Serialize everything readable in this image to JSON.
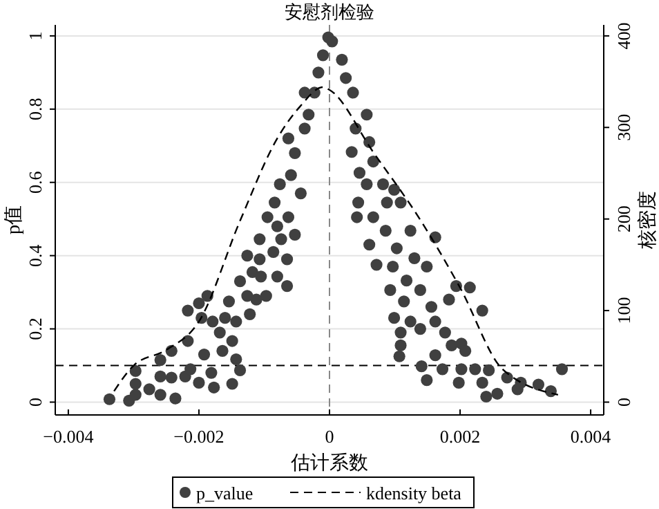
{
  "chart_data": {
    "type": "scatter",
    "title": "安慰剂检验",
    "xlabel": "估计系数",
    "ylabel": "p值",
    "y2label": "核密度",
    "xlim": [
      -0.0042,
      0.0042
    ],
    "xticks": [
      {
        "value": -0.004,
        "label": "−0.004"
      },
      {
        "value": -0.002,
        "label": "−0.002"
      },
      0,
      0.002,
      0.004
    ],
    "ylim": [
      -0.035,
      1.03
    ],
    "yticks": [
      0,
      0.2,
      0.4,
      0.6,
      0.8,
      1
    ],
    "y2lim": [
      -14,
      412
    ],
    "y2ticks": [
      0,
      100,
      200,
      300,
      400
    ],
    "grid": "y",
    "legend": "bottom",
    "ref_lines": [
      {
        "axis": "y",
        "value": 0.1,
        "color": "#000000",
        "line_style": "dashed"
      },
      {
        "axis": "x",
        "value": 0,
        "color": "#888888",
        "line_style": "dashed"
      }
    ],
    "series": [
      {
        "name": "p_value",
        "color": "#404040",
        "marker": "circle",
        "x": [
          -0.00337,
          -0.00307,
          -0.00297,
          -0.00297,
          -0.00297,
          -0.00276,
          -0.00259,
          -0.00259,
          -0.00259,
          -0.00242,
          -0.00236,
          -0.00242,
          -0.00221,
          -0.00217,
          -0.00217,
          -0.00213,
          -0.002,
          -0.002,
          -0.00187,
          -0.00196,
          -0.00192,
          -0.00181,
          -0.00179,
          -0.00177,
          -0.00168,
          -0.00164,
          -0.0016,
          -0.00149,
          -0.00154,
          -0.00149,
          -0.00143,
          -0.00137,
          -0.00143,
          -0.00137,
          -0.00126,
          -0.00122,
          -0.00112,
          -0.00118,
          -0.00126,
          -0.00107,
          -0.00105,
          -0.00097,
          -0.00095,
          -0.00086,
          -0.00084,
          -0.0008,
          -0.00074,
          -0.00076,
          -0.00065,
          -0.00063,
          -0.00059,
          -0.00053,
          -0.00053,
          -0.00044,
          -0.00038,
          -0.00032,
          -0.00023,
          -0.00017,
          -0.0001,
          -2e-05,
          -0.00107,
          -0.00063,
          -0.00038,
          -0.00065,
          -0.0008,
          4e-05,
          0.00019,
          0.00025,
          0.00036,
          0.00057,
          0.0004,
          0.00061,
          0.00034,
          0.00046,
          0.00067,
          0.00057,
          0.00082,
          0.00044,
          0.00088,
          0.00067,
          0.00099,
          0.00042,
          0.00061,
          0.00086,
          0.00109,
          0.00124,
          0.00162,
          0.00103,
          0.00072,
          0.00097,
          0.0013,
          0.00118,
          0.00149,
          0.00093,
          0.00114,
          0.00139,
          0.00156,
          0.00099,
          0.00124,
          0.00139,
          0.00162,
          0.00177,
          0.00109,
          0.00183,
          0.00194,
          0.00215,
          0.00234,
          0.00109,
          0.00107,
          0.00141,
          0.00149,
          0.00162,
          0.00173,
          0.00187,
          0.00202,
          0.00208,
          0.00202,
          0.00198,
          0.00223,
          0.00234,
          0.00244,
          0.0024,
          0.00257,
          0.00272,
          0.00288,
          0.00293,
          0.0032,
          0.00339,
          0.00356
        ],
        "values": [
          0.008,
          0.004,
          0.02,
          0.05,
          0.085,
          0.035,
          0.02,
          0.07,
          0.115,
          0.067,
          0.01,
          0.14,
          0.07,
          0.25,
          0.167,
          0.09,
          0.27,
          0.053,
          0.29,
          0.23,
          0.13,
          0.08,
          0.22,
          0.04,
          0.19,
          0.14,
          0.23,
          0.05,
          0.275,
          0.167,
          0.117,
          0.087,
          0.22,
          0.33,
          0.29,
          0.24,
          0.28,
          0.355,
          0.4,
          0.445,
          0.343,
          0.29,
          0.505,
          0.41,
          0.545,
          0.343,
          0.445,
          0.595,
          0.317,
          0.505,
          0.62,
          0.457,
          0.68,
          0.57,
          0.747,
          0.785,
          0.845,
          0.9,
          0.947,
          0.996,
          0.39,
          0.72,
          0.845,
          0.39,
          0.48,
          0.985,
          0.935,
          0.885,
          0.845,
          0.785,
          0.747,
          0.71,
          0.683,
          0.626,
          0.657,
          0.595,
          0.595,
          0.545,
          0.545,
          0.505,
          0.58,
          0.505,
          0.43,
          0.468,
          0.545,
          0.468,
          0.45,
          0.42,
          0.375,
          0.37,
          0.393,
          0.332,
          0.37,
          0.306,
          0.275,
          0.306,
          0.26,
          0.23,
          0.22,
          0.2,
          0.22,
          0.19,
          0.19,
          0.28,
          0.317,
          0.313,
          0.25,
          0.155,
          0.125,
          0.098,
          0.06,
          0.128,
          0.09,
          0.155,
          0.16,
          0.14,
          0.09,
          0.053,
          0.09,
          0.053,
          0.087,
          0.015,
          0.023,
          0.067,
          0.035,
          0.053,
          0.048,
          0.03,
          0.09
        ]
      },
      {
        "name": "kdensity beta",
        "type": "line",
        "axis": "y2",
        "color": "#000000",
        "line_style": "dashed",
        "x": [
          -0.0033,
          -0.003,
          -0.0025,
          -0.002,
          -0.00137,
          -0.0008,
          -0.00045,
          -0.0001,
          0,
          0.00067,
          0.0014,
          0.002,
          0.00265,
          0.0035
        ],
        "values": [
          12,
          40,
          57,
          88,
          198,
          288,
          323,
          344,
          341,
          273,
          198,
          125,
          36,
          8
        ]
      }
    ]
  }
}
